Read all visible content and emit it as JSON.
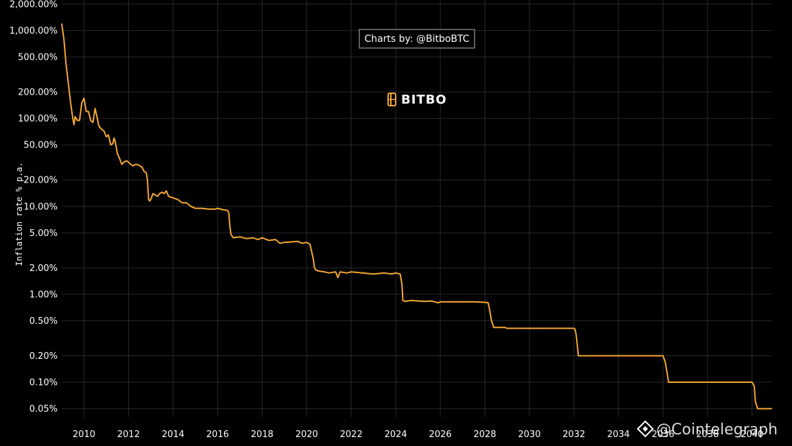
{
  "chart_data": {
    "type": "line",
    "title": "",
    "xlabel": "",
    "ylabel": "Inflation rate % p.a.",
    "x_range": [
      2009.0,
      2040.9
    ],
    "ylim": [
      0.04,
      2000
    ],
    "y_scale": "log",
    "grid": true,
    "x_ticks": [
      {
        "value": 2010,
        "label": "2010"
      },
      {
        "value": 2012,
        "label": "2012"
      },
      {
        "value": 2014,
        "label": "2014"
      },
      {
        "value": 2016,
        "label": "2016"
      },
      {
        "value": 2018,
        "label": "2018"
      },
      {
        "value": 2020,
        "label": "2020"
      },
      {
        "value": 2022,
        "label": "2022"
      },
      {
        "value": 2024,
        "label": "2024"
      },
      {
        "value": 2026,
        "label": "2026"
      },
      {
        "value": 2028,
        "label": "2028"
      },
      {
        "value": 2030,
        "label": "2030"
      },
      {
        "value": 2032,
        "label": "2032"
      },
      {
        "value": 2034,
        "label": "2034"
      },
      {
        "value": 2036,
        "label": "2036"
      },
      {
        "value": 2038,
        "label": "2038"
      },
      {
        "value": 2040,
        "label": "2040"
      }
    ],
    "y_ticks": [
      {
        "value": 2000,
        "label": "2,000.00%"
      },
      {
        "value": 1000,
        "label": "1,000.00%"
      },
      {
        "value": 500,
        "label": "500.00%"
      },
      {
        "value": 200,
        "label": "200.00%"
      },
      {
        "value": 100,
        "label": "100.00%"
      },
      {
        "value": 50,
        "label": "50.00%"
      },
      {
        "value": 20,
        "label": "20.00%"
      },
      {
        "value": 10,
        "label": "10.00%"
      },
      {
        "value": 5,
        "label": "5.00%"
      },
      {
        "value": 2,
        "label": "2.00%"
      },
      {
        "value": 1,
        "label": "1.00%"
      },
      {
        "value": 0.5,
        "label": "0.50%"
      },
      {
        "value": 0.2,
        "label": "0.20%"
      },
      {
        "value": 0.1,
        "label": "0.10%"
      },
      {
        "value": 0.05,
        "label": "0.05%"
      }
    ],
    "series": [
      {
        "color": "#F7A934",
        "x": [
          2009.0,
          2009.1,
          2009.2,
          2009.3,
          2009.4,
          2009.5,
          2009.55,
          2009.6,
          2009.7,
          2009.8,
          2009.9,
          2010.0,
          2010.1,
          2010.2,
          2010.3,
          2010.4,
          2010.5,
          2010.6,
          2010.65,
          2010.7,
          2010.8,
          2010.9,
          2011.0,
          2011.1,
          2011.2,
          2011.3,
          2011.35,
          2011.4,
          2011.5,
          2011.6,
          2011.7,
          2011.8,
          2011.9,
          2012.0,
          2012.1,
          2012.2,
          2012.3,
          2012.4,
          2012.5,
          2012.6,
          2012.7,
          2012.8,
          2012.85,
          2012.9,
          2012.95,
          2013.0,
          2013.1,
          2013.2,
          2013.3,
          2013.4,
          2013.5,
          2013.6,
          2013.7,
          2013.8,
          2014.0,
          2014.2,
          2014.4,
          2014.6,
          2014.8,
          2015.0,
          2015.3,
          2015.6,
          2015.9,
          2016.0,
          2016.2,
          2016.45,
          2016.5,
          2016.55,
          2016.6,
          2016.7,
          2017.0,
          2017.3,
          2017.6,
          2017.8,
          2018.0,
          2018.3,
          2018.6,
          2018.8,
          2019.0,
          2019.3,
          2019.6,
          2019.8,
          2020.0,
          2020.15,
          2020.3,
          2020.35,
          2020.4,
          2020.5,
          2020.8,
          2021.0,
          2021.3,
          2021.4,
          2021.5,
          2021.8,
          2022.0,
          2022.5,
          2023.0,
          2023.5,
          2023.8,
          2024.0,
          2024.2,
          2024.28,
          2024.32,
          2024.4,
          2024.7,
          2025.0,
          2025.3,
          2025.6,
          2025.9,
          2026.0,
          2026.5,
          2027.0,
          2027.5,
          2028.0,
          2028.15,
          2028.2,
          2028.3,
          2028.4,
          2028.9,
          2029.0,
          2030.0,
          2031.0,
          2032.0,
          2032.05,
          2032.1,
          2032.2,
          2033.0,
          2034.0,
          2035.0,
          2036.0,
          2036.1,
          2036.2,
          2036.25,
          2037.0,
          2038.0,
          2039.0,
          2040.0,
          2040.1,
          2040.15,
          2040.25,
          2040.5,
          2040.9
        ],
        "y": [
          1200,
          800,
          400,
          250,
          150,
          100,
          85,
          105,
          95,
          95,
          150,
          170,
          120,
          120,
          95,
          90,
          130,
          100,
          85,
          80,
          75,
          72,
          62,
          65,
          50,
          52,
          60,
          55,
          40,
          35,
          30,
          32,
          33,
          32,
          30,
          29,
          30,
          30,
          29,
          28,
          25,
          24,
          20,
          12,
          11.5,
          12,
          14,
          13.5,
          13,
          14,
          14.5,
          14,
          15,
          13,
          12.5,
          12,
          11,
          11,
          10,
          9.5,
          9.5,
          9.3,
          9.3,
          9.5,
          9.2,
          9.0,
          8.5,
          6.0,
          4.8,
          4.4,
          4.5,
          4.3,
          4.4,
          4.2,
          4.4,
          4.1,
          4.2,
          3.8,
          3.9,
          3.95,
          4.0,
          3.8,
          3.9,
          3.7,
          2.5,
          2.0,
          1.9,
          1.85,
          1.8,
          1.75,
          1.8,
          1.55,
          1.8,
          1.75,
          1.8,
          1.75,
          1.7,
          1.75,
          1.7,
          1.75,
          1.7,
          1.3,
          0.85,
          0.83,
          0.85,
          0.84,
          0.83,
          0.84,
          0.8,
          0.82,
          0.82,
          0.82,
          0.82,
          0.81,
          0.8,
          0.7,
          0.5,
          0.42,
          0.42,
          0.41,
          0.41,
          0.41,
          0.41,
          0.4,
          0.35,
          0.2,
          0.2,
          0.2,
          0.2,
          0.2,
          0.17,
          0.12,
          0.1,
          0.1,
          0.1,
          0.1,
          0.1,
          0.09,
          0.06,
          0.05,
          0.05,
          0.05
        ]
      }
    ],
    "annotations": {
      "credit": "Charts by: @BitboBTC",
      "logo": "BITBO",
      "watermark": "@Cointelegraph"
    }
  },
  "colors": {
    "background": "#000000",
    "line": "#F7A934",
    "grid": "#2A2A2A",
    "text": "#FFFFFF"
  }
}
